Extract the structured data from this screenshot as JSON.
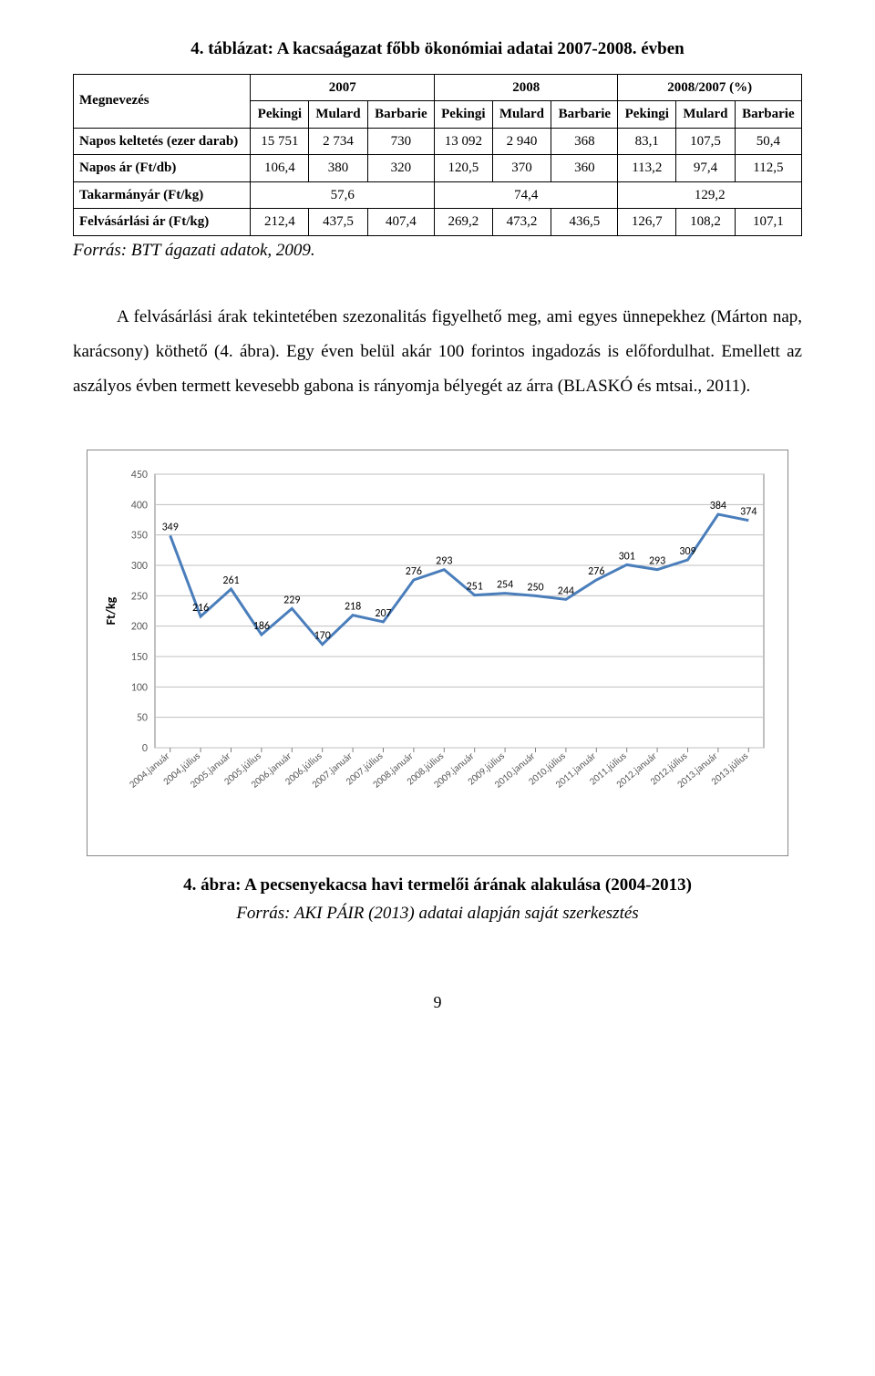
{
  "table": {
    "title": "4. táblázat: A kacsaágazat főbb ökonómiai adatai 2007-2008. évben",
    "col_group_labels": [
      "2007",
      "2008",
      "2008/2007 (%)"
    ],
    "subcols": [
      "Pekingi",
      "Mulard",
      "Barbarie"
    ],
    "left_header": "Megnevezés",
    "rows": [
      {
        "label": "Napos keltetés (ezer darab)",
        "cells": [
          "15 751",
          "2 734",
          "730",
          "13 092",
          "2 940",
          "368",
          "83,1",
          "107,5",
          "50,4"
        ]
      },
      {
        "label": "Napos ár (Ft/db)",
        "cells": [
          "106,4",
          "380",
          "320",
          "120,5",
          "370",
          "360",
          "113,2",
          "97,4",
          "112,5"
        ]
      },
      {
        "label": "Takarmányár (Ft/kg)",
        "merged": true,
        "cells": [
          "57,6",
          "74,4",
          "129,2"
        ]
      },
      {
        "label": "Felvásárlási ár (Ft/kg)",
        "cells": [
          "212,4",
          "437,5",
          "407,4",
          "269,2",
          "473,2",
          "436,5",
          "126,7",
          "108,2",
          "107,1"
        ]
      }
    ],
    "source": "Forrás: BTT ágazati adatok, 2009."
  },
  "paragraph": "A felvásárlási árak tekintetében szezonalitás figyelhető meg, ami egyes ünnepekhez (Márton nap, karácsony) köthető (4. ábra). Egy éven belül akár 100 forintos ingadozás is előfordulhat. Emellett az aszályos évben termett kevesebb gabona is rányomja bélyegét az árra (BLASKÓ és mtsai., 2011).",
  "chart": {
    "type": "line",
    "y_label": "Ft/kg",
    "y_label_fontsize": 14,
    "ylim": [
      0,
      450
    ],
    "ytick_step": 50,
    "categories": [
      "2004.január",
      "2004.július",
      "2005.január",
      "2005.július",
      "2006.január",
      "2006.július",
      "2007.január",
      "2007.július",
      "2008.január",
      "2008.július",
      "2009.január",
      "2009.július",
      "2010.január",
      "2010.július",
      "2011.január",
      "2011.július",
      "2012.január",
      "2012.július",
      "2013.január",
      "2013.július"
    ],
    "values": [
      349,
      216,
      261,
      186,
      229,
      170,
      218,
      207,
      276,
      293,
      251,
      254,
      250,
      244,
      276,
      301,
      293,
      309,
      384,
      374
    ],
    "line_color": "#4a7ebb",
    "line_width": 3,
    "grid_color": "#bfbfbf",
    "background_color": "#ffffff",
    "axis_color": "#808080",
    "label_fontsize": 12,
    "x_label_fontsize": 11,
    "value_label_fontsize": 12,
    "value_label_color": "#000000",
    "font_family": "Calibri, Arial, sans-serif"
  },
  "figure": {
    "caption": "4. ábra: A pecsenyekacsa havi termelői árának alakulása (2004-2013)",
    "source": "Forrás: AKI PÁIR (2013) adatai alapján saját szerkesztés"
  },
  "page_number": "9"
}
